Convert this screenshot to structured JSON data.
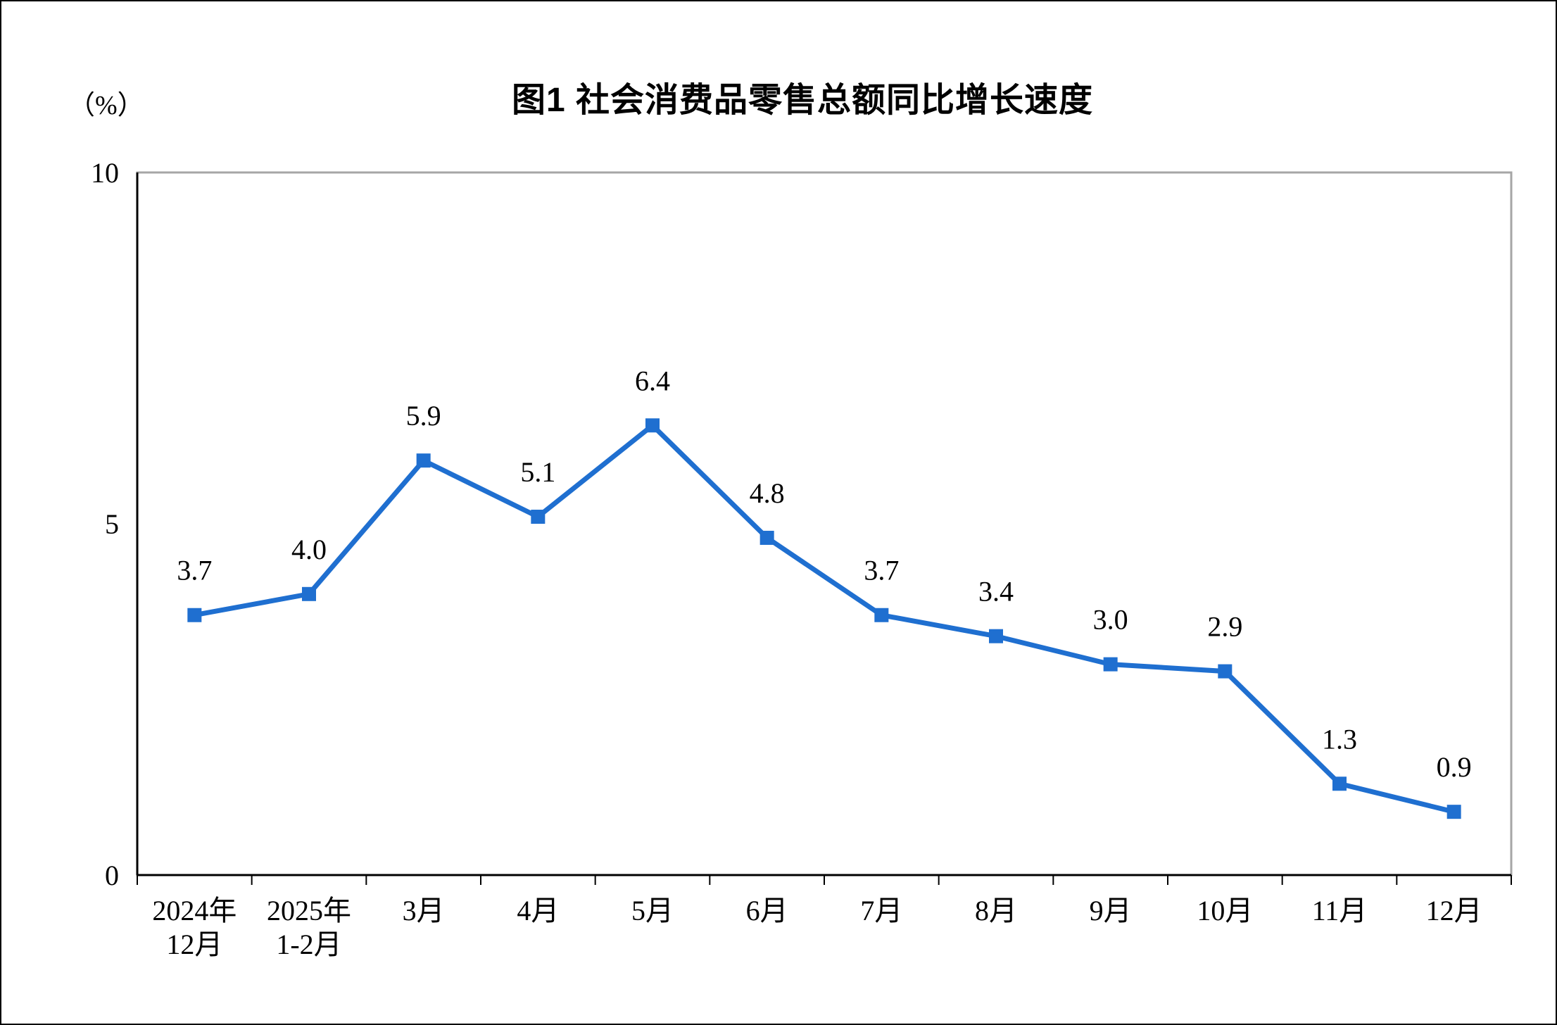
{
  "page": {
    "background": "#ffffff"
  },
  "chart_data": {
    "type": "line",
    "title": "图1  社会消费品零售总额同比增长速度",
    "unit_label": "（%）",
    "categories": [
      "2024年\n12月",
      "2025年\n1-2月",
      "3月",
      "4月",
      "5月",
      "6月",
      "7月",
      "8月",
      "9月",
      "10月",
      "11月",
      "12月"
    ],
    "values": [
      3.7,
      4.0,
      5.9,
      5.1,
      6.4,
      4.8,
      3.7,
      3.4,
      3.0,
      2.9,
      1.3,
      0.9
    ],
    "data_labels": [
      "3.7",
      "4.0",
      "5.9",
      "5.1",
      "6.4",
      "4.8",
      "3.7",
      "3.4",
      "3.0",
      "2.9",
      "1.3",
      "0.9"
    ],
    "xlabel": "",
    "ylabel": "（%）",
    "ylim": [
      0,
      10
    ],
    "yticks": [
      0,
      5,
      10
    ],
    "ytick_labels": [
      "0",
      "5",
      "10"
    ],
    "grid": false,
    "legend": false,
    "marker": "square",
    "line_color": "#1f6fd0",
    "axis_color": "#000000",
    "frame_color": "#a6a6a6",
    "label_color": "#000000"
  }
}
